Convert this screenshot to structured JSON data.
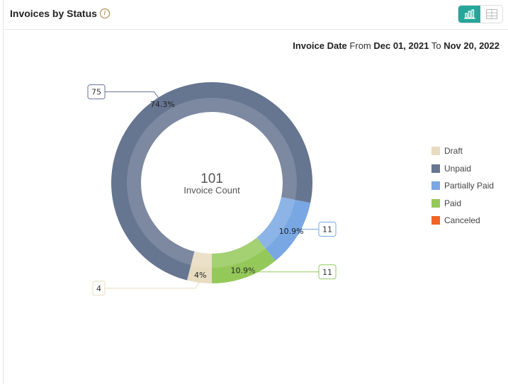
{
  "header": {
    "title": "Invoices by Status",
    "info_icon": "i",
    "view_toggle": {
      "chart_icon": "bar-chart-icon",
      "table_icon": "table-grid-icon",
      "active": "chart"
    }
  },
  "date_range": {
    "field": "Invoice Date",
    "from_label": "From",
    "from": "Dec 01, 2021",
    "to_label": "To",
    "to": "Nov 20, 2022"
  },
  "chart_data": {
    "type": "pie",
    "donut": true,
    "center_value": "101",
    "center_label": "Invoice Count",
    "legend_position": "right",
    "series": [
      {
        "name": "Draft",
        "value": 4,
        "percent": "4%",
        "color": "#e8dcc0"
      },
      {
        "name": "Unpaid",
        "value": 75,
        "percent": "74.3%",
        "color": "#667590"
      },
      {
        "name": "Partially Paid",
        "value": 11,
        "percent": "10.9%",
        "color": "#79a7e3"
      },
      {
        "name": "Paid",
        "value": 11,
        "percent": "10.9%",
        "color": "#94c95a"
      },
      {
        "name": "Canceled",
        "value": 0,
        "percent": "",
        "color": "#f36424"
      }
    ]
  }
}
